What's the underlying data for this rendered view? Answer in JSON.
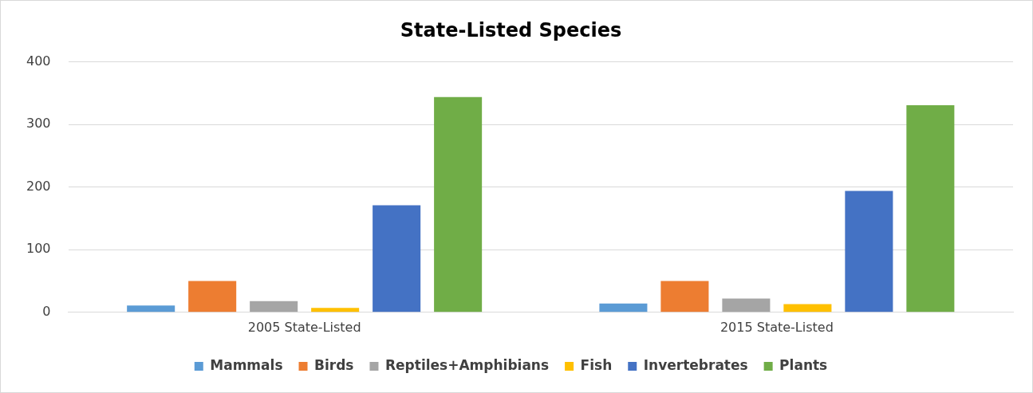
{
  "chart_data": {
    "type": "bar",
    "title": "State-Listed Species",
    "categories": [
      "2005 State-Listed",
      "2015 State-Listed"
    ],
    "series": [
      {
        "name": "Mammals",
        "color": "#5b9bd5",
        "values": [
          11,
          14
        ]
      },
      {
        "name": "Birds",
        "color": "#ed7d31",
        "values": [
          50,
          50
        ]
      },
      {
        "name": "Reptiles+Amphibians",
        "color": "#a5a5a5",
        "values": [
          18,
          22
        ]
      },
      {
        "name": "Fish",
        "color": "#ffc000",
        "values": [
          7,
          13
        ]
      },
      {
        "name": "Invertebrates",
        "color": "#4472c4",
        "values": [
          171,
          194
        ]
      },
      {
        "name": "Plants",
        "color": "#70ad47",
        "values": [
          344,
          331
        ]
      }
    ],
    "ylim": [
      0,
      400
    ],
    "yticks": [
      0,
      100,
      200,
      300,
      400
    ],
    "grid": "y",
    "legend": "bottom"
  }
}
